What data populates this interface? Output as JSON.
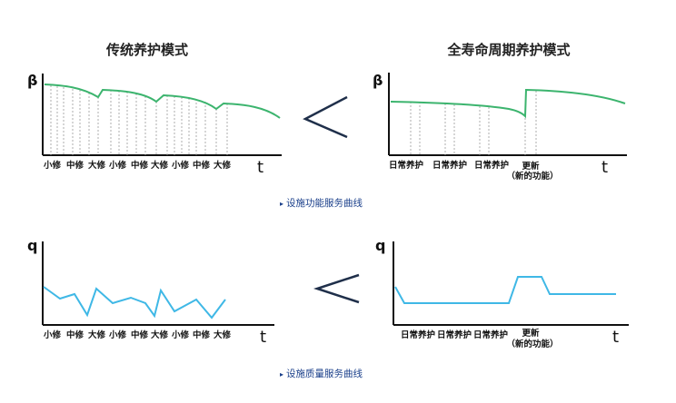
{
  "top": {
    "left_title": "传统养护模式",
    "right_title": "全寿命周期养护模式",
    "y_symbol": "β",
    "x_symbol": "t",
    "left_labels": [
      "小修",
      "中修",
      "大修",
      "小修",
      "中修",
      "大修",
      "小修",
      "中修",
      "大修"
    ],
    "right_labels": [
      "日常养护",
      "日常养护",
      "日常养护"
    ],
    "right_renew_label": "更新",
    "right_renew_sub": "（新的功能）",
    "caption": "设施功能服务曲线",
    "curve_color": "#3cb46e"
  },
  "bottom": {
    "y_symbol": "q",
    "x_symbol": "t",
    "left_labels": [
      "小修",
      "中修",
      "大修",
      "小修",
      "中修",
      "大修",
      "小修",
      "中修",
      "大修"
    ],
    "right_labels": [
      "日常养护",
      "日常养护",
      "日常养护"
    ],
    "right_renew_label": "更新",
    "right_renew_sub": "（新的功能）",
    "caption": "设施质量服务曲线",
    "curve_color": "#3fb8e6"
  },
  "comparison_symbol": "<",
  "caption_icon": "arrow-bullet-icon"
}
